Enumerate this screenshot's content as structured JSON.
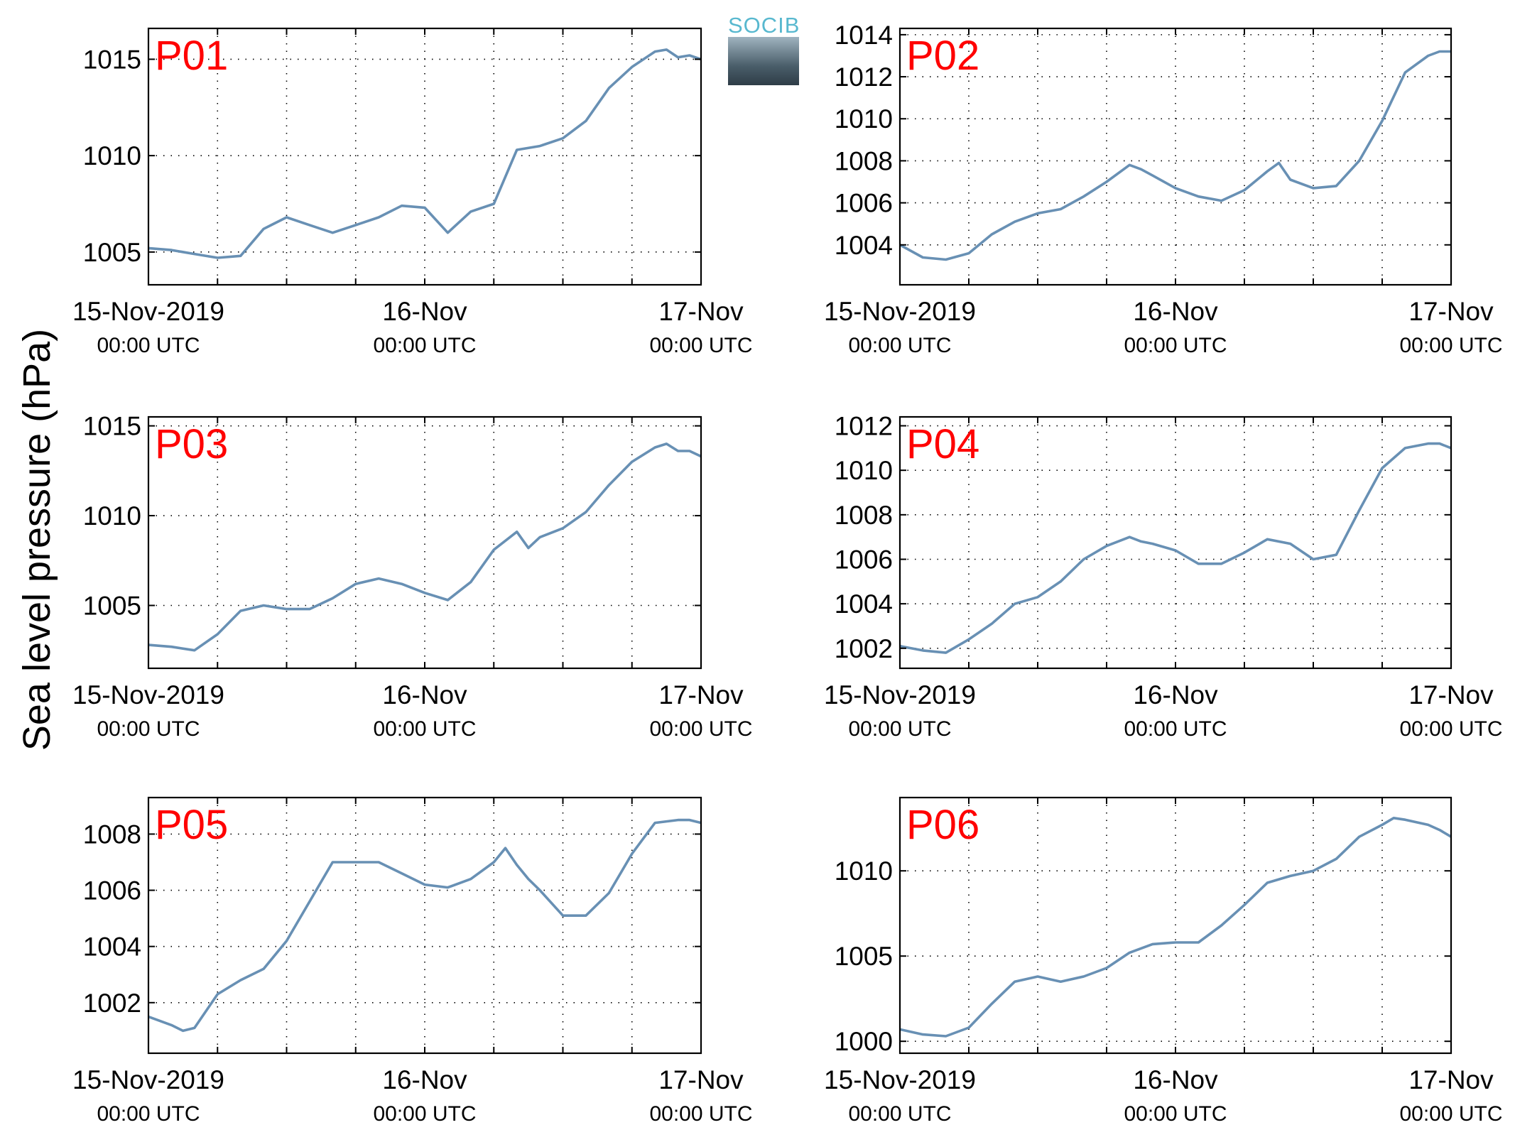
{
  "ylabel": "Sea level pressure (hPa)",
  "logo_text": "SOCIB",
  "colors": {
    "line": "#6890b4",
    "panel_label": "#ff0000",
    "axes": "#000000"
  },
  "x_ticks": [
    {
      "line1": "15-Nov-2019",
      "line2": "00:00 UTC"
    },
    {
      "line1": "16-Nov",
      "line2": "00:00 UTC"
    },
    {
      "line1": "17-Nov",
      "line2": "00:00 UTC"
    }
  ],
  "chart_data": [
    {
      "type": "line",
      "label": "P01",
      "xlim": [
        "2019-11-15 00:00",
        "2019-11-17 00:00"
      ],
      "ylim": [
        1003.3,
        1016.6
      ],
      "yticks": [
        1005,
        1010,
        1015
      ],
      "grid": true,
      "x_hours": [
        0,
        2,
        4,
        6,
        8,
        10,
        12,
        14,
        16,
        18,
        20,
        22,
        24,
        26,
        28,
        30,
        32,
        34,
        36,
        38,
        40,
        42,
        44,
        45,
        46,
        47,
        48
      ],
      "values": [
        1005.2,
        1005.1,
        1004.9,
        1004.7,
        1004.8,
        1006.2,
        1006.8,
        1006.4,
        1006.0,
        1006.4,
        1006.8,
        1007.4,
        1007.3,
        1006.0,
        1007.1,
        1007.5,
        1010.3,
        1010.5,
        1010.9,
        1011.8,
        1013.5,
        1014.6,
        1015.4,
        1015.5,
        1015.1,
        1015.2,
        1015.0
      ]
    },
    {
      "type": "line",
      "label": "P02",
      "xlim": [
        "2019-11-15 00:00",
        "2019-11-17 00:00"
      ],
      "ylim": [
        1002.1,
        1014.3
      ],
      "yticks": [
        1004,
        1006,
        1008,
        1010,
        1012,
        1014
      ],
      "grid": true,
      "x_hours": [
        0,
        2,
        4,
        6,
        8,
        10,
        12,
        14,
        16,
        18,
        20,
        21,
        22,
        24,
        26,
        28,
        30,
        32,
        33,
        34,
        36,
        38,
        40,
        42,
        44,
        46,
        47,
        48
      ],
      "values": [
        1004.0,
        1003.4,
        1003.3,
        1003.6,
        1004.5,
        1005.1,
        1005.5,
        1005.7,
        1006.3,
        1007.0,
        1007.8,
        1007.6,
        1007.3,
        1006.7,
        1006.3,
        1006.1,
        1006.6,
        1007.5,
        1007.9,
        1007.1,
        1006.7,
        1006.8,
        1008.0,
        1009.9,
        1012.2,
        1013.0,
        1013.2,
        1013.2
      ]
    },
    {
      "type": "line",
      "label": "P03",
      "xlim": [
        "2019-11-15 00:00",
        "2019-11-17 00:00"
      ],
      "ylim": [
        1001.5,
        1015.5
      ],
      "yticks": [
        1005,
        1010,
        1015
      ],
      "grid": true,
      "x_hours": [
        0,
        2,
        4,
        6,
        8,
        10,
        12,
        14,
        16,
        18,
        20,
        22,
        24,
        26,
        28,
        30,
        32,
        33,
        34,
        36,
        38,
        40,
        42,
        44,
        45,
        46,
        47,
        48
      ],
      "values": [
        1002.8,
        1002.7,
        1002.5,
        1003.4,
        1004.7,
        1005.0,
        1004.8,
        1004.8,
        1005.4,
        1006.2,
        1006.5,
        1006.2,
        1005.7,
        1005.3,
        1006.3,
        1008.1,
        1009.1,
        1008.2,
        1008.8,
        1009.3,
        1010.2,
        1011.7,
        1013.0,
        1013.8,
        1014.0,
        1013.6,
        1013.6,
        1013.3
      ]
    },
    {
      "type": "line",
      "label": "P04",
      "xlim": [
        "2019-11-15 00:00",
        "2019-11-17 00:00"
      ],
      "ylim": [
        1001.1,
        1012.4
      ],
      "yticks": [
        1002,
        1004,
        1006,
        1008,
        1010,
        1012
      ],
      "grid": true,
      "x_hours": [
        0,
        2,
        4,
        6,
        8,
        10,
        12,
        14,
        16,
        18,
        20,
        21,
        22,
        24,
        26,
        28,
        30,
        32,
        34,
        36,
        38,
        40,
        42,
        44,
        46,
        47,
        48
      ],
      "values": [
        1002.1,
        1001.9,
        1001.8,
        1002.4,
        1003.1,
        1004.0,
        1004.3,
        1005.0,
        1006.0,
        1006.6,
        1007.0,
        1006.8,
        1006.7,
        1006.4,
        1005.8,
        1005.8,
        1006.3,
        1006.9,
        1006.7,
        1006.0,
        1006.2,
        1008.2,
        1010.1,
        1011.0,
        1011.2,
        1011.2,
        1011.0
      ]
    },
    {
      "type": "line",
      "label": "P05",
      "xlim": [
        "2019-11-15 00:00",
        "2019-11-17 00:00"
      ],
      "ylim": [
        1000.2,
        1009.3
      ],
      "yticks": [
        1002,
        1004,
        1006,
        1008
      ],
      "grid": true,
      "x_hours": [
        0,
        2,
        3,
        4,
        6,
        8,
        10,
        12,
        16,
        18,
        20,
        22,
        24,
        26,
        28,
        30,
        31,
        32,
        33,
        34,
        36,
        38,
        40,
        42,
        44,
        46,
        47,
        48
      ],
      "values": [
        1001.5,
        1001.2,
        1001.0,
        1001.1,
        1002.3,
        1002.8,
        1003.2,
        1004.2,
        1007.0,
        1007.0,
        1007.0,
        1006.6,
        1006.2,
        1006.1,
        1006.4,
        1007.0,
        1007.5,
        1006.9,
        1006.4,
        1006.0,
        1005.1,
        1005.1,
        1005.9,
        1007.3,
        1008.4,
        1008.5,
        1008.5,
        1008.4
      ]
    },
    {
      "type": "line",
      "label": "P06",
      "xlim": [
        "2019-11-15 00:00",
        "2019-11-17 00:00"
      ],
      "ylim": [
        999.3,
        1014.3
      ],
      "yticks": [
        1000,
        1005,
        1010
      ],
      "grid": true,
      "x_hours": [
        0,
        2,
        4,
        6,
        8,
        10,
        12,
        14,
        16,
        18,
        20,
        22,
        24,
        26,
        28,
        30,
        32,
        34,
        36,
        38,
        40,
        42,
        43,
        44,
        46,
        47,
        48
      ],
      "values": [
        1000.7,
        1000.4,
        1000.3,
        1000.8,
        1002.2,
        1003.5,
        1003.8,
        1003.5,
        1003.8,
        1004.3,
        1005.2,
        1005.7,
        1005.8,
        1005.8,
        1006.8,
        1008.0,
        1009.3,
        1009.7,
        1010.0,
        1010.7,
        1012.0,
        1012.7,
        1013.1,
        1013.0,
        1012.7,
        1012.4,
        1012.0
      ]
    }
  ]
}
